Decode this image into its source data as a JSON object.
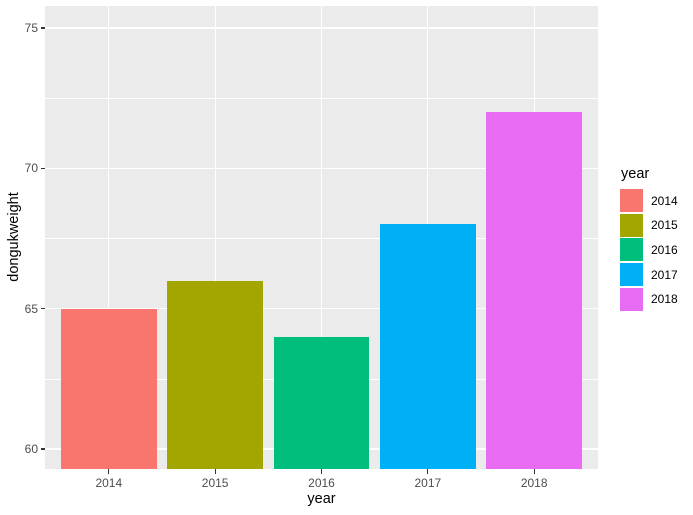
{
  "chart_data": {
    "type": "bar",
    "title": "",
    "categories": [
      "2014",
      "2015",
      "2016",
      "2017",
      "2018"
    ],
    "values": [
      65,
      66,
      64,
      68,
      72
    ],
    "xlabel": "year",
    "ylabel": "dongukweight",
    "ylim": [
      59.29,
      75.78
    ],
    "yticks": [
      60,
      65,
      70,
      75
    ],
    "yticks_minor": [
      62.5,
      67.5,
      72.5
    ],
    "bar_colors": [
      "#F8766D",
      "#A3A500",
      "#00BF7D",
      "#00B0F6",
      "#E76BF3"
    ],
    "grid": true,
    "legend": {
      "title": "year",
      "position": "right",
      "entries": [
        {
          "label": "2014",
          "color": "#F8766D"
        },
        {
          "label": "2015",
          "color": "#A3A500"
        },
        {
          "label": "2016",
          "color": "#00BF7D"
        },
        {
          "label": "2017",
          "color": "#00B0F6"
        },
        {
          "label": "2018",
          "color": "#E76BF3"
        }
      ]
    }
  },
  "style": {
    "panel_bg": "#EBEBEB",
    "grid_color": "#FFFFFF",
    "tick_mark_color": "#333333",
    "tick_label_color": "#4D4D4D",
    "title_color": "#000000",
    "background": "#FFFFFF"
  }
}
